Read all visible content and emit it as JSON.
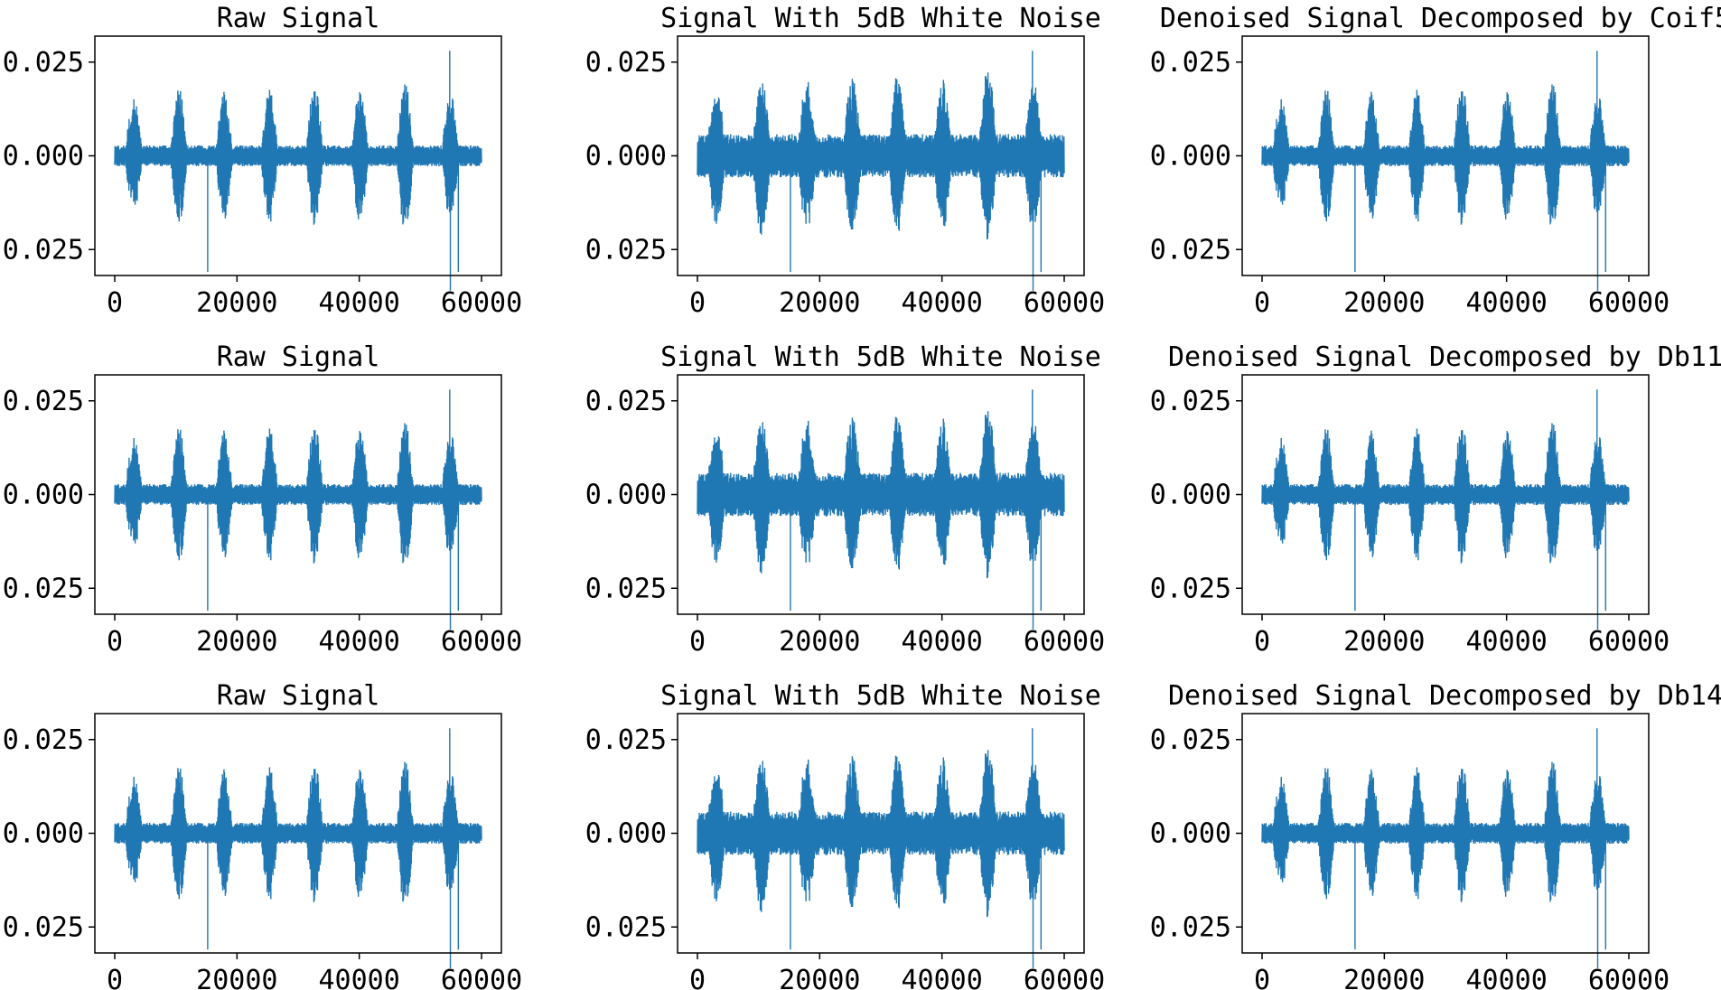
{
  "chart_data": [
    {
      "type": "line",
      "title": "Raw Signal",
      "xlim": [
        0,
        60000
      ],
      "ylim": [
        -0.03,
        0.03
      ],
      "x_ticks": [
        "0",
        "20000",
        "40000",
        "60000"
      ],
      "y_ticks": [
        "0.025",
        "0.000",
        "0.025"
      ],
      "series": [
        {
          "color": "#1f77b4",
          "n_samples": 60000,
          "envelope": "raw"
        }
      ]
    },
    {
      "type": "line",
      "title": "Signal With 5dB White Noise",
      "xlim": [
        0,
        60000
      ],
      "ylim": [
        -0.03,
        0.03
      ],
      "x_ticks": [
        "0",
        "20000",
        "40000",
        "60000"
      ],
      "y_ticks": [
        "0.025",
        "0.000",
        "0.025"
      ],
      "series": [
        {
          "color": "#1f77b4",
          "n_samples": 60000,
          "envelope": "noisy"
        }
      ]
    },
    {
      "type": "line",
      "title": "Denoised Signal Decomposed by Coif5",
      "xlim": [
        0,
        60000
      ],
      "ylim": [
        -0.03,
        0.03
      ],
      "x_ticks": [
        "0",
        "20000",
        "40000",
        "60000"
      ],
      "y_ticks": [
        "0.025",
        "0.000",
        "0.025"
      ],
      "series": [
        {
          "color": "#1f77b4",
          "n_samples": 60000,
          "envelope": "denoised"
        }
      ]
    },
    {
      "type": "line",
      "title": "Raw Signal",
      "xlim": [
        0,
        60000
      ],
      "ylim": [
        -0.03,
        0.03
      ],
      "x_ticks": [
        "0",
        "20000",
        "40000",
        "60000"
      ],
      "y_ticks": [
        "0.025",
        "0.000",
        "0.025"
      ],
      "series": [
        {
          "color": "#1f77b4",
          "n_samples": 60000,
          "envelope": "raw"
        }
      ]
    },
    {
      "type": "line",
      "title": "Signal With 5dB White Noise",
      "xlim": [
        0,
        60000
      ],
      "ylim": [
        -0.03,
        0.03
      ],
      "x_ticks": [
        "0",
        "20000",
        "40000",
        "60000"
      ],
      "y_ticks": [
        "0.025",
        "0.000",
        "0.025"
      ],
      "series": [
        {
          "color": "#1f77b4",
          "n_samples": 60000,
          "envelope": "noisy"
        }
      ]
    },
    {
      "type": "line",
      "title": "Denoised Signal Decomposed by Db11",
      "xlim": [
        0,
        60000
      ],
      "ylim": [
        -0.03,
        0.03
      ],
      "x_ticks": [
        "0",
        "20000",
        "40000",
        "60000"
      ],
      "y_ticks": [
        "0.025",
        "0.000",
        "0.025"
      ],
      "series": [
        {
          "color": "#1f77b4",
          "n_samples": 60000,
          "envelope": "denoised"
        }
      ]
    },
    {
      "type": "line",
      "title": "Raw Signal",
      "xlim": [
        0,
        60000
      ],
      "ylim": [
        -0.03,
        0.03
      ],
      "x_ticks": [
        "0",
        "20000",
        "40000",
        "60000"
      ],
      "y_ticks": [
        "0.025",
        "0.000",
        "0.025"
      ],
      "series": [
        {
          "color": "#1f77b4",
          "n_samples": 60000,
          "envelope": "raw"
        }
      ]
    },
    {
      "type": "line",
      "title": "Signal With 5dB White Noise",
      "xlim": [
        0,
        60000
      ],
      "ylim": [
        -0.03,
        0.03
      ],
      "x_ticks": [
        "0",
        "20000",
        "40000",
        "60000"
      ],
      "y_ticks": [
        "0.025",
        "0.000",
        "0.025"
      ],
      "series": [
        {
          "color": "#1f77b4",
          "n_samples": 60000,
          "envelope": "noisy"
        }
      ]
    },
    {
      "type": "line",
      "title": "Denoised Signal Decomposed by Db14",
      "xlim": [
        0,
        60000
      ],
      "ylim": [
        -0.03,
        0.03
      ],
      "x_ticks": [
        "0",
        "20000",
        "40000",
        "60000"
      ],
      "y_ticks": [
        "0.025",
        "0.000",
        "0.025"
      ],
      "series": [
        {
          "color": "#1f77b4",
          "n_samples": 60000,
          "envelope": "denoised"
        }
      ]
    }
  ]
}
